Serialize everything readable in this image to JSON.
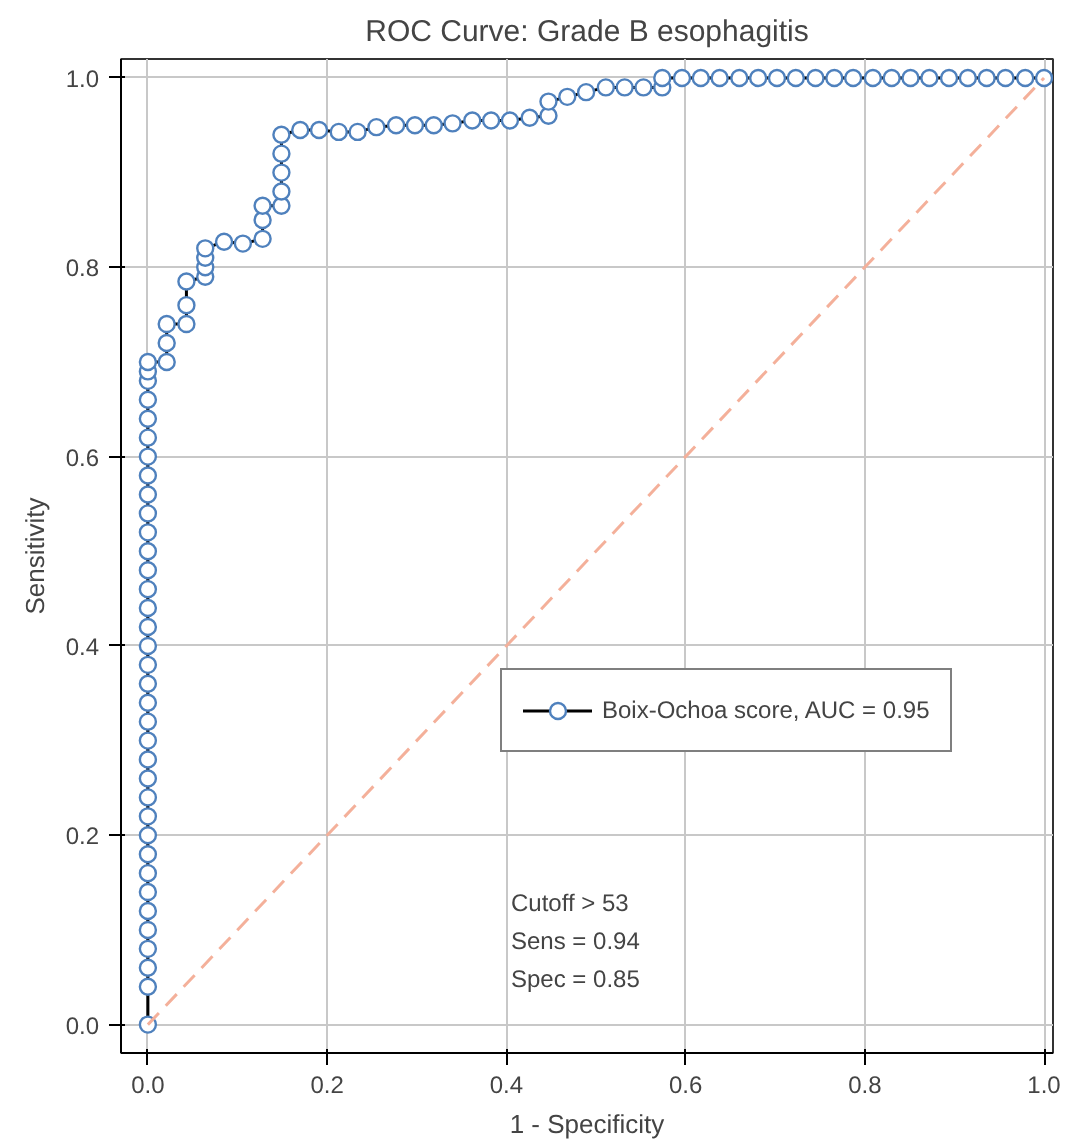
{
  "chart_data": {
    "type": "line",
    "title": "ROC Curve: Grade B esophagitis",
    "xlabel": "1 - Specificity",
    "ylabel": "Sensitivity",
    "xlim": [
      -0.03,
      1.01
    ],
    "ylim": [
      -0.03,
      1.02
    ],
    "xticks": [
      {
        "value": 0,
        "label": "0.0"
      },
      0.2,
      0.4,
      0.6,
      0.8,
      {
        "value": 1,
        "label": "1.0"
      }
    ],
    "yticks": [
      {
        "value": 0,
        "label": "0.0"
      },
      0.2,
      0.4,
      0.6,
      0.8,
      {
        "value": 1,
        "label": "1.0"
      }
    ],
    "grid": true,
    "legend": "right",
    "marker": "circle",
    "line_style": "solid",
    "annotations": [
      "Cutoff > 53",
      "Sens = 0.94",
      "Spec = 0.85"
    ],
    "series": [
      {
        "name": "Boix-Ochoa score, AUC = 0.95",
        "color": "#4f81bd",
        "x": [
          0,
          0,
          0,
          0,
          0,
          0,
          0,
          0,
          0,
          0,
          0,
          0,
          0,
          0,
          0,
          0,
          0,
          0,
          0,
          0,
          0,
          0,
          0,
          0,
          0,
          0,
          0,
          0,
          0,
          0,
          0,
          0,
          0,
          0,
          0,
          0,
          0.021,
          0.021,
          0.021,
          0.043,
          0.043,
          0.043,
          0.064,
          0.064,
          0.064,
          0.064,
          0.085,
          0.106,
          0.128,
          0.128,
          0.128,
          0.149,
          0.149,
          0.149,
          0.149,
          0.149,
          0.17,
          0.191,
          0.213,
          0.234,
          0.255,
          0.277,
          0.298,
          0.319,
          0.34,
          0.362,
          0.383,
          0.404,
          0.426,
          0.447,
          0.447,
          0.468,
          0.489,
          0.511,
          0.532,
          0.553,
          0.574,
          0.574,
          0.596,
          0.617,
          0.638,
          0.66,
          0.681,
          0.702,
          0.723,
          0.745,
          0.766,
          0.787,
          0.809,
          0.83,
          0.851,
          0.872,
          0.894,
          0.915,
          0.936,
          0.957,
          0.979,
          1.0
        ],
        "values": [
          0,
          0.04,
          0.06,
          0.08,
          0.1,
          0.12,
          0.14,
          0.16,
          0.18,
          0.2,
          0.22,
          0.24,
          0.26,
          0.28,
          0.3,
          0.32,
          0.34,
          0.36,
          0.38,
          0.4,
          0.42,
          0.44,
          0.46,
          0.48,
          0.5,
          0.52,
          0.54,
          0.56,
          0.58,
          0.6,
          0.62,
          0.64,
          0.66,
          0.68,
          0.69,
          0.7,
          0.7,
          0.72,
          0.74,
          0.74,
          0.76,
          0.785,
          0.79,
          0.8,
          0.81,
          0.82,
          0.827,
          0.825,
          0.83,
          0.85,
          0.865,
          0.865,
          0.88,
          0.9,
          0.92,
          0.94,
          0.945,
          0.945,
          0.943,
          0.943,
          0.948,
          0.95,
          0.95,
          0.95,
          0.952,
          0.955,
          0.955,
          0.955,
          0.958,
          0.96,
          0.975,
          0.98,
          0.985,
          0.99,
          0.99,
          0.99,
          0.99,
          1.0,
          1.0,
          1.0,
          1.0,
          1.0,
          1.0,
          1.0,
          1.0,
          1.0,
          1.0,
          1.0,
          1.0,
          1.0,
          1.0,
          1.0,
          1.0,
          1.0,
          1.0,
          1.0,
          1.0,
          1.0
        ]
      },
      {
        "color": "#f4b09a",
        "x": [
          0,
          1
        ],
        "values": [
          0,
          1
        ],
        "marker": "none",
        "line_style": "dashed"
      }
    ]
  }
}
